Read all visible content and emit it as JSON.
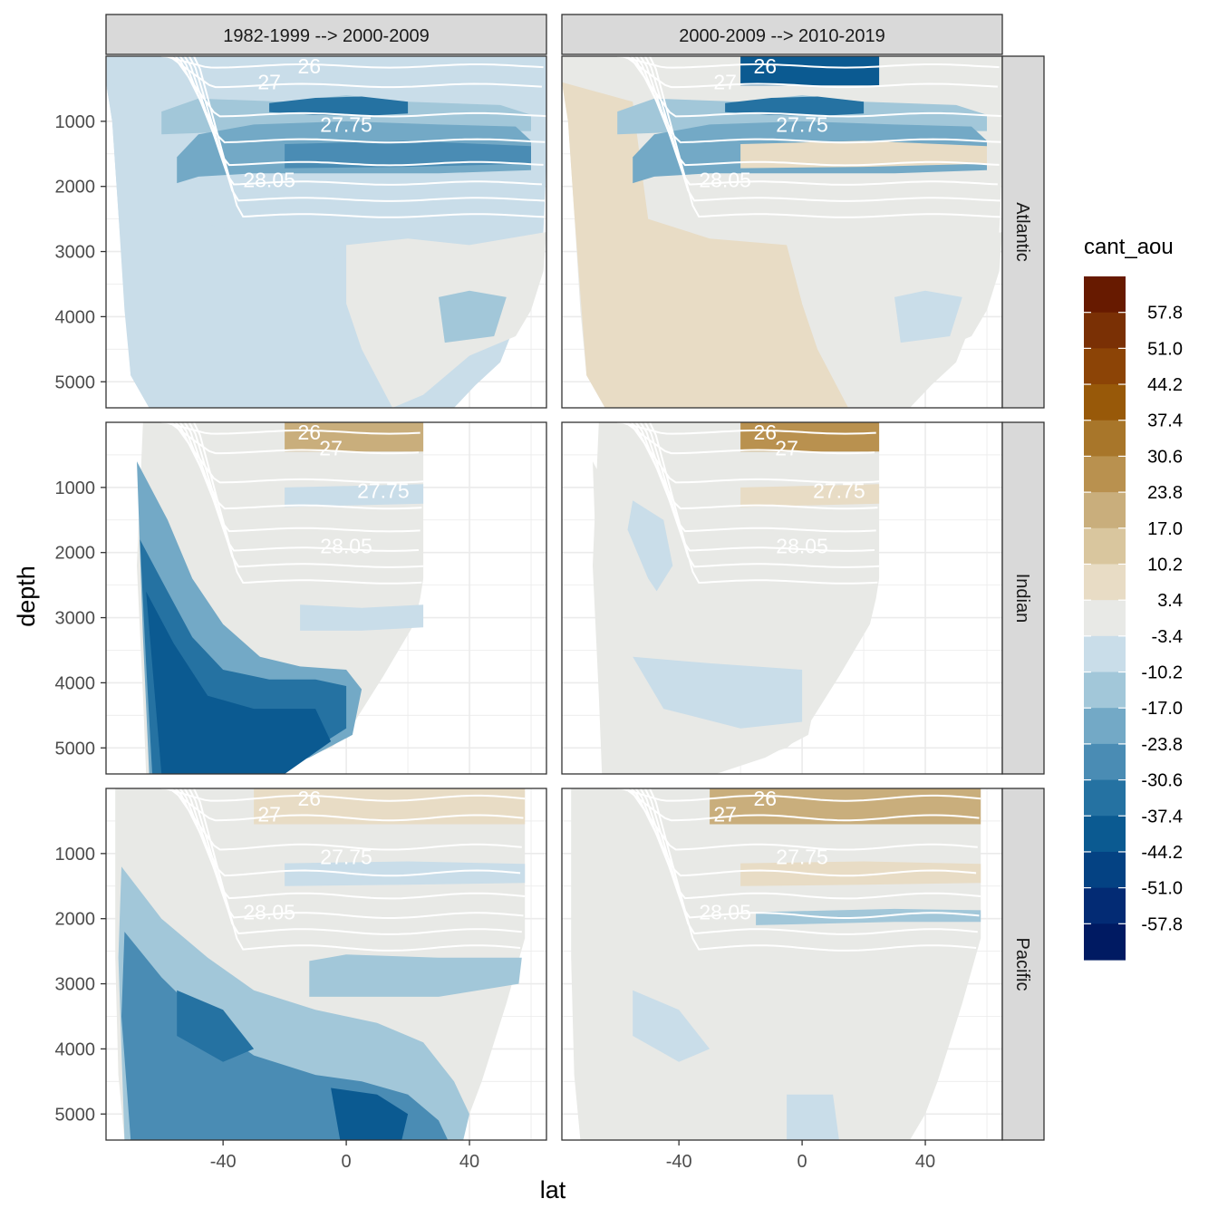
{
  "chart_data": {
    "type": "heatmap",
    "subtype": "filled-contour section, faceted 3 rows x 2 columns",
    "xlabel": "lat",
    "ylabel": "depth",
    "x_ticks": [
      -40,
      0,
      40
    ],
    "y_ticks": [
      1000,
      2000,
      3000,
      4000,
      5000
    ],
    "x_range": [
      -78,
      65
    ],
    "y_range": [
      0,
      5400
    ],
    "y_reversed": true,
    "grid": true,
    "theme": "bw",
    "column_strips": [
      "1982-1999 --> 2000-2009",
      "2000-2009 --> 2010-2019"
    ],
    "row_strips": [
      "Atlantic",
      "Indian",
      "Pacific"
    ],
    "legend": {
      "title": "cant_aou",
      "position": "right",
      "break_labels": [
        "57.8",
        "51.0",
        "44.2",
        "37.4",
        "30.6",
        "23.8",
        "17.0",
        "10.2",
        "3.4",
        "-3.4",
        "-10.2",
        "-17.0",
        "-23.8",
        "-30.6",
        "-37.4",
        "-44.2",
        "-51.0",
        "-57.8"
      ],
      "colors": [
        "#671a00",
        "#7a3005",
        "#8c4406",
        "#985909",
        "#a8762a",
        "#b9914f",
        "#c9ae7c",
        "#d9c69e",
        "#e8dcc5",
        "#e8e9e6",
        "#c9dde9",
        "#a2c7d9",
        "#73a9c6",
        "#4a8cb4",
        "#2572a2",
        "#0b5a91",
        "#044283",
        "#032b74",
        "#001a62"
      ]
    },
    "isopycnal_labels": [
      "26",
      "27",
      "27.75",
      "28.05"
    ],
    "panels": [
      {
        "row": "Atlantic",
        "column": "1982-1999 --> 2000-2009",
        "isopycnal_labels": [
          "26",
          "27",
          "27.75",
          "28.05"
        ],
        "visible_classes": [
          "-30.6",
          "-23.8",
          "-17.0",
          "-10.2",
          "-3.4",
          "3.4"
        ]
      },
      {
        "row": "Atlantic",
        "column": "2000-2009 --> 2010-2019",
        "isopycnal_labels": [
          "26",
          "27",
          "27.75",
          "28.05"
        ],
        "visible_classes": [
          "-37.4",
          "-30.6",
          "-23.8",
          "-17.0",
          "-10.2",
          "-3.4",
          "3.4",
          "10.2"
        ]
      },
      {
        "row": "Indian",
        "column": "1982-1999 --> 2000-2009",
        "isopycnal_labels": [
          "26",
          "27",
          "27.75",
          "28.05"
        ],
        "visible_classes": [
          "-37.4",
          "-30.6",
          "-23.8",
          "-17.0",
          "-10.2",
          "-3.4",
          "3.4",
          "10.2",
          "17.0",
          "23.8"
        ]
      },
      {
        "row": "Indian",
        "column": "2000-2009 --> 2010-2019",
        "isopycnal_labels": [
          "26",
          "27",
          "27.75",
          "28.05"
        ],
        "visible_classes": [
          "-10.2",
          "-3.4",
          "3.4",
          "10.2",
          "17.0",
          "23.8",
          "30.6"
        ]
      },
      {
        "row": "Pacific",
        "column": "1982-1999 --> 2000-2009",
        "isopycnal_labels": [
          "26",
          "27",
          "27.75",
          "28.05"
        ],
        "visible_classes": [
          "-37.4",
          "-30.6",
          "-23.8",
          "-17.0",
          "-10.2",
          "-3.4",
          "3.4",
          "10.2"
        ]
      },
      {
        "row": "Pacific",
        "column": "2000-2009 --> 2010-2019",
        "isopycnal_labels": [
          "26",
          "27",
          "27.75",
          "28.05"
        ],
        "visible_classes": [
          "-17.0",
          "-10.2",
          "-3.4",
          "3.4",
          "10.2",
          "17.0",
          "23.8"
        ]
      }
    ]
  }
}
